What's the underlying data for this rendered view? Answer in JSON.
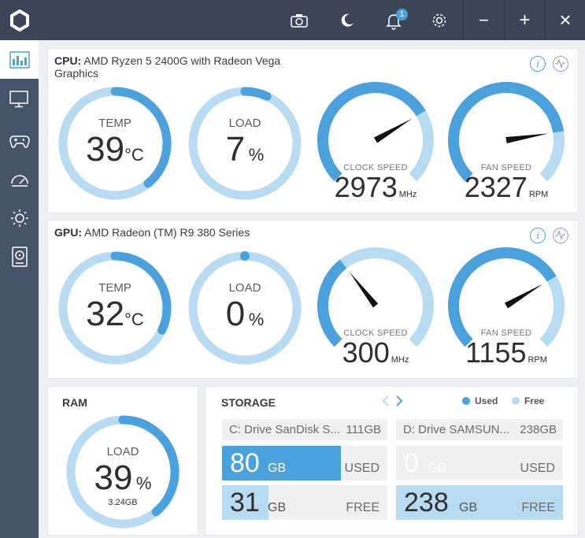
{
  "window": {
    "buttons": [
      "camera-icon",
      "moon-icon",
      "bell-icon",
      "gear-icon"
    ],
    "notification_count": "1",
    "minimize": "−",
    "maximize": "+",
    "close": "×"
  },
  "sidebar": {
    "items": [
      "dashboard-icon",
      "monitor-icon",
      "gamepad-icon",
      "speedometer-icon",
      "brightness-icon",
      "storage-icon"
    ]
  },
  "cpu": {
    "label": "CPU:",
    "name": "AMD Ryzen 5 2400G with Radeon Vega Graphics",
    "temp": {
      "title": "TEMP",
      "value": "39",
      "unit": "°C",
      "level": 0.39
    },
    "load": {
      "title": "LOAD",
      "value": "7",
      "unit": "%",
      "level": 0.07
    },
    "clock": {
      "title": "CLOCK SPEED",
      "value": "2973",
      "unit": "MHz",
      "level": 0.72
    },
    "fan": {
      "title": "FAN SPEED",
      "value": "2327",
      "unit": "RPM",
      "level": 0.8
    }
  },
  "gpu": {
    "label": "GPU:",
    "name": "AMD Radeon (TM) R9 380 Series",
    "temp": {
      "title": "TEMP",
      "value": "32",
      "unit": "°C",
      "level": 0.32
    },
    "load": {
      "title": "LOAD",
      "value": "0",
      "unit": "%",
      "level": 0.0
    },
    "clock": {
      "title": "CLOCK SPEED",
      "value": "300",
      "unit": "MHz",
      "level": 0.36
    },
    "fan": {
      "title": "FAN SPEED",
      "value": "1155",
      "unit": "RPM",
      "level": 0.72
    }
  },
  "ram": {
    "label": "RAM",
    "title": "LOAD",
    "value": "39",
    "unit": "%",
    "used": "3.24GB",
    "level": 0.39
  },
  "storage": {
    "label": "STORAGE",
    "legend_used": "Used",
    "legend_free": "Free",
    "drives": [
      {
        "name": "C: Drive SanDisk S...",
        "size": "111GB",
        "used": "80",
        "free": "31",
        "unit": "GB",
        "used_label": "USED",
        "free_label": "FREE",
        "used_fraction": 0.72,
        "free_fraction": 0.28
      },
      {
        "name": "D: Drive SAMSUN...",
        "size": "238GB",
        "used": "0",
        "free": "238",
        "unit": "GB",
        "used_label": "USED",
        "free_label": "FREE",
        "used_fraction": 0.0,
        "free_fraction": 1.0
      }
    ]
  },
  "colors": {
    "accent": "#4aa1dc",
    "track": "#b9dbf1",
    "titlebar": "#3a4658",
    "sidebar": "#46546a"
  }
}
